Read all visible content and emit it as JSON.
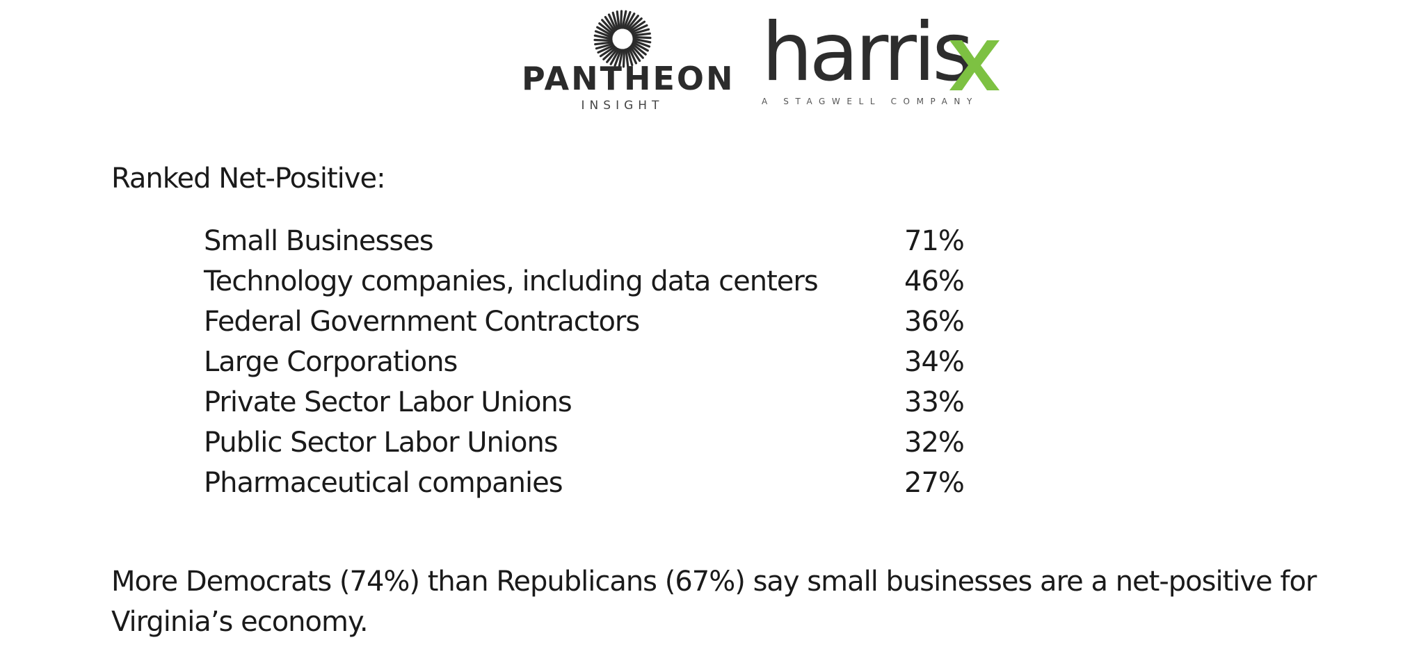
{
  "logos": {
    "pantheon": {
      "name": "PANTHEON",
      "tagline": "INSIGHT"
    },
    "harrisx": {
      "name": "harris",
      "accent_letter": "x",
      "tagline": "A STAGWELL COMPANY",
      "accent_color": "#7dc142"
    }
  },
  "section": {
    "heading": "Ranked Net-Positive:"
  },
  "ranked_items": [
    {
      "label": "Small Businesses",
      "value": "71%"
    },
    {
      "label": "Technology companies, including data centers",
      "value": "46%"
    },
    {
      "label": "Federal Government Contractors",
      "value": "36%"
    },
    {
      "label": "Large Corporations",
      "value": "34%"
    },
    {
      "label": "Private Sector Labor Unions",
      "value": "33%"
    },
    {
      "label": "Public Sector Labor Unions",
      "value": "32%"
    },
    {
      "label": "Pharmaceutical companies",
      "value": "27%"
    }
  ],
  "summary": {
    "text": "More Democrats (74%) than Republicans (67%) say small businesses are a net-positive for Virginia’s economy."
  }
}
